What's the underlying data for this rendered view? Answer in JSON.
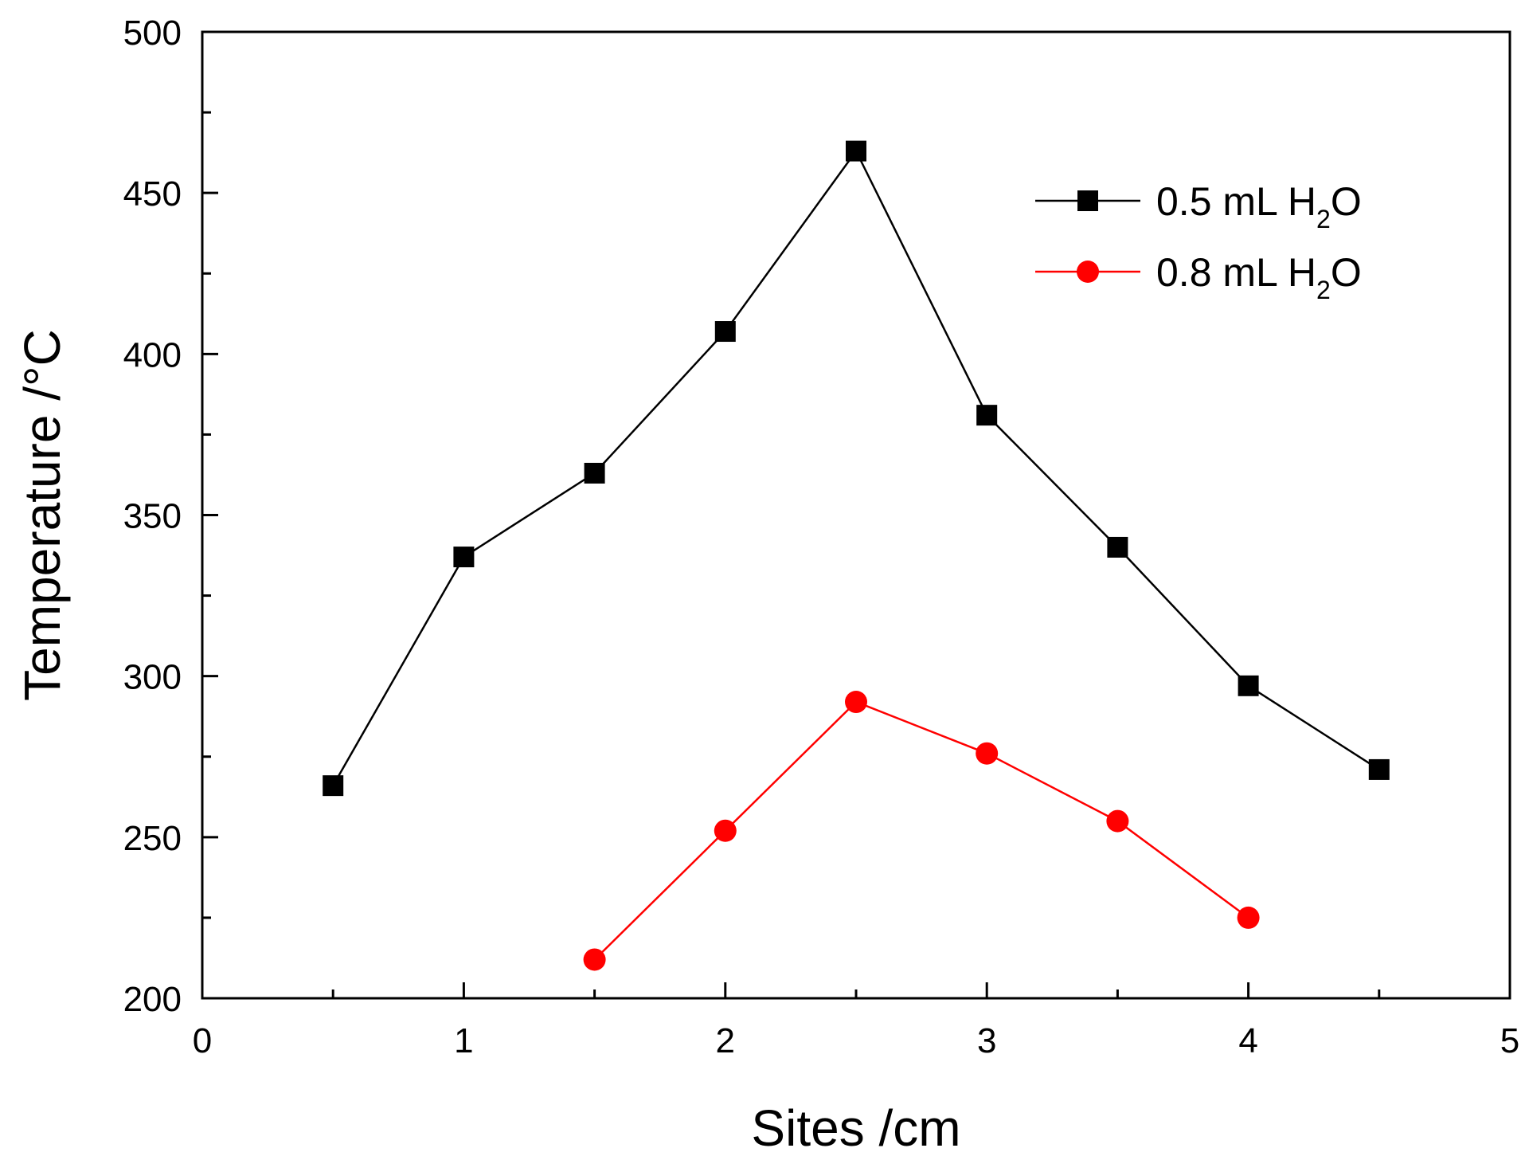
{
  "chart_data": {
    "type": "line",
    "xlabel": "Sites /cm",
    "ylabel": "Temperature /°C",
    "xlim": [
      0,
      5
    ],
    "ylim": [
      200,
      500
    ],
    "xticks": [
      0,
      1,
      2,
      3,
      4,
      5
    ],
    "yticks": [
      200,
      250,
      300,
      350,
      400,
      450,
      500
    ],
    "grid": false,
    "legend_position": "top-right",
    "series": [
      {
        "name": "0.5 mL H2O",
        "legend_parts": {
          "prefix": "0.5 mL H",
          "sub": "2",
          "suffix": "O"
        },
        "color": "#000000",
        "marker": "square",
        "x": [
          0.5,
          1.0,
          1.5,
          2.0,
          2.5,
          3.0,
          3.5,
          4.0,
          4.5
        ],
        "y": [
          266,
          337,
          363,
          407,
          463,
          381,
          340,
          297,
          271
        ]
      },
      {
        "name": "0.8 mL H2O",
        "legend_parts": {
          "prefix": "0.8 mL H",
          "sub": "2",
          "suffix": "O"
        },
        "color": "#ff0000",
        "marker": "circle",
        "x": [
          1.5,
          2.0,
          2.5,
          3.0,
          3.5,
          4.0
        ],
        "y": [
          212,
          252,
          292,
          276,
          255,
          225
        ]
      }
    ]
  }
}
